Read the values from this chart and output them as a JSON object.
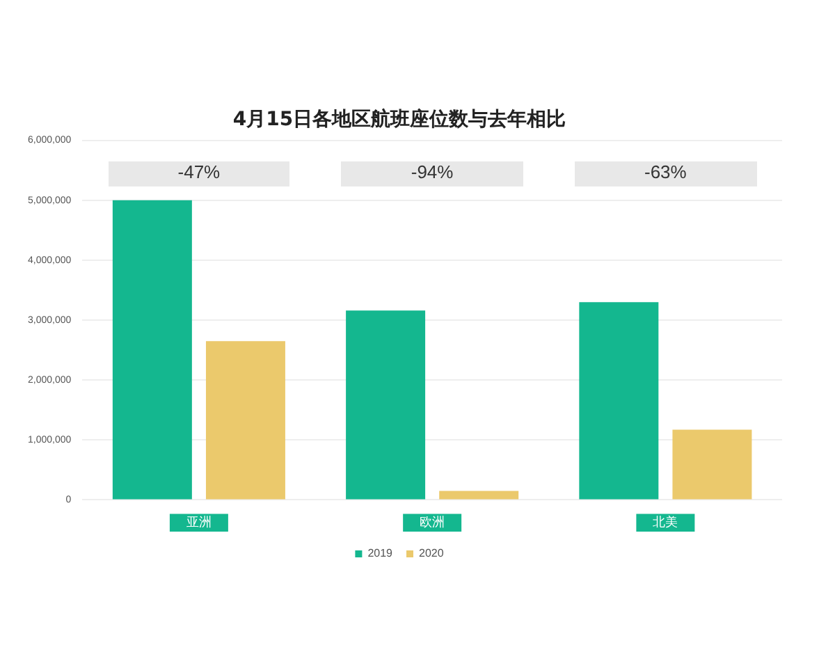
{
  "chart_data": {
    "type": "bar",
    "title": "4月15日各地区航班座位数与去年相比",
    "categories": [
      "亚洲",
      "欧洲",
      "北美"
    ],
    "series": [
      {
        "name": "2019",
        "color": "#14b78f",
        "values": [
          5000000,
          3160000,
          3300000
        ]
      },
      {
        "name": "2020",
        "color": "#ebc96c",
        "values": [
          2650000,
          150000,
          1170000
        ]
      }
    ],
    "ylim": [
      0,
      6000000
    ],
    "yticks": [
      {
        "value": 0,
        "label": "0"
      },
      {
        "value": 1000000,
        "label": "1,000,000"
      },
      {
        "value": 2000000,
        "label": "2,000,000"
      },
      {
        "value": 3000000,
        "label": "3,000,000"
      },
      {
        "value": 4000000,
        "label": "4,000,000"
      },
      {
        "value": 5000000,
        "label": "5,000,000"
      },
      {
        "value": 6000000,
        "label": "6,000,000"
      }
    ],
    "annotations": [
      "-47%",
      "-94%",
      "-63%"
    ],
    "grid": "y",
    "legend": "bottom"
  }
}
